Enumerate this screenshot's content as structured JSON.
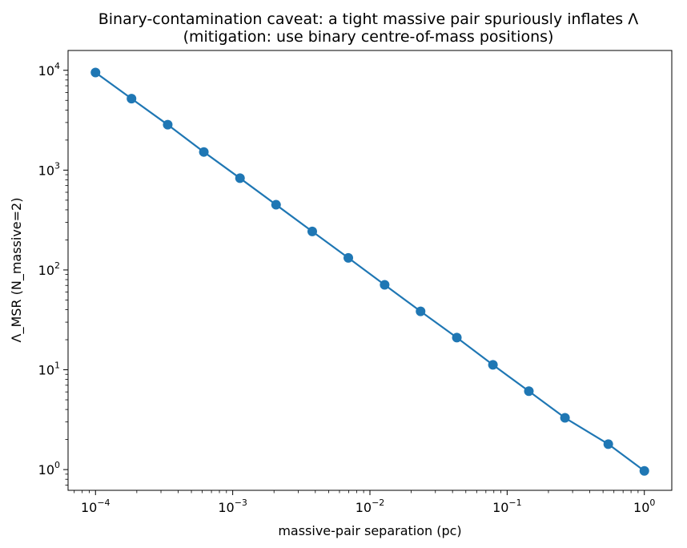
{
  "chart_data": {
    "type": "line",
    "title": "Binary-contamination caveat: a tight massive pair spuriously inflates Λ",
    "subtitle": "(mitigation: use binary centre-of-mass positions)",
    "xlabel": "massive-pair separation (pc)",
    "ylabel": "Λ_MSR (N_massive=2)",
    "xscale": "log",
    "yscale": "log",
    "xlim": [
      6.31e-05,
      1.585
    ],
    "ylim": [
      0.62,
      15800
    ],
    "grid": false,
    "color": "#1f77b4",
    "marker": "circle",
    "x_ticks": [
      {
        "value": 0.0001,
        "base": "10",
        "exp": "−4"
      },
      {
        "value": 0.001,
        "base": "10",
        "exp": "−3"
      },
      {
        "value": 0.01,
        "base": "10",
        "exp": "−2"
      },
      {
        "value": 0.1,
        "base": "10",
        "exp": "−1"
      },
      {
        "value": 1,
        "base": "10",
        "exp": "0"
      }
    ],
    "y_ticks": [
      {
        "value": 1,
        "base": "10",
        "exp": "0"
      },
      {
        "value": 10,
        "base": "10",
        "exp": "1"
      },
      {
        "value": 100,
        "base": "10",
        "exp": "2"
      },
      {
        "value": 1000,
        "base": "10",
        "exp": "3"
      },
      {
        "value": 10000,
        "base": "10",
        "exp": "4"
      }
    ],
    "series": [
      {
        "x": [
          0.0001,
          0.000183,
          0.000336,
          0.000616,
          0.00113,
          0.00207,
          0.0038,
          0.00696,
          0.0128,
          0.0234,
          0.043,
          0.0788,
          0.144,
          0.264,
          0.546,
          1.0
        ],
        "y": [
          9500,
          5200,
          2850,
          1520,
          830,
          450,
          243,
          132,
          71,
          38.5,
          21,
          11.2,
          6.1,
          3.3,
          1.8,
          0.97
        ]
      }
    ]
  }
}
